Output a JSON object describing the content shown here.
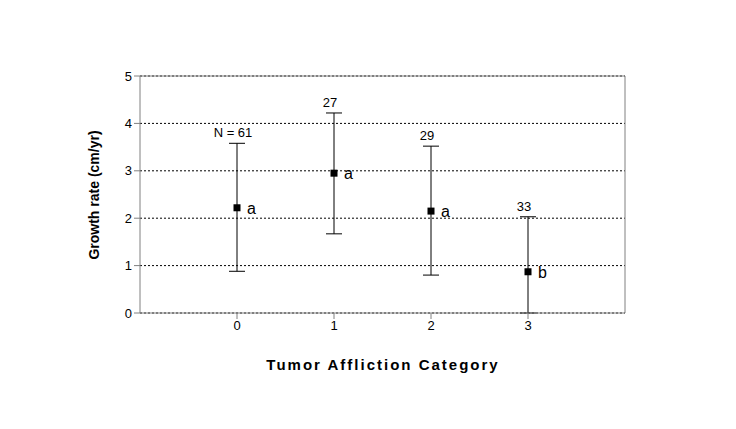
{
  "chart_data": {
    "type": "scatter",
    "x_label": "Tumor Affliction Category",
    "y_label": "Growth rate (cm/yr)",
    "x": [
      0,
      1,
      2,
      3
    ],
    "values": [
      2.22,
      2.95,
      2.15,
      0.87
    ],
    "error_low": [
      1.34,
      1.28,
      1.35,
      0.87
    ],
    "error_high": [
      1.36,
      1.27,
      1.37,
      1.16
    ],
    "n_labels": [
      "N = 61",
      "27",
      "29",
      "33"
    ],
    "group_labels": [
      "a",
      "a",
      "a",
      "b"
    ],
    "xlim": [
      -1,
      4
    ],
    "xticks": [
      0,
      1,
      2,
      3
    ],
    "ylim": [
      0,
      5
    ],
    "yticks": [
      0,
      1,
      2,
      3,
      4,
      5
    ],
    "grid": true,
    "color": "#000000",
    "marker": "square"
  }
}
